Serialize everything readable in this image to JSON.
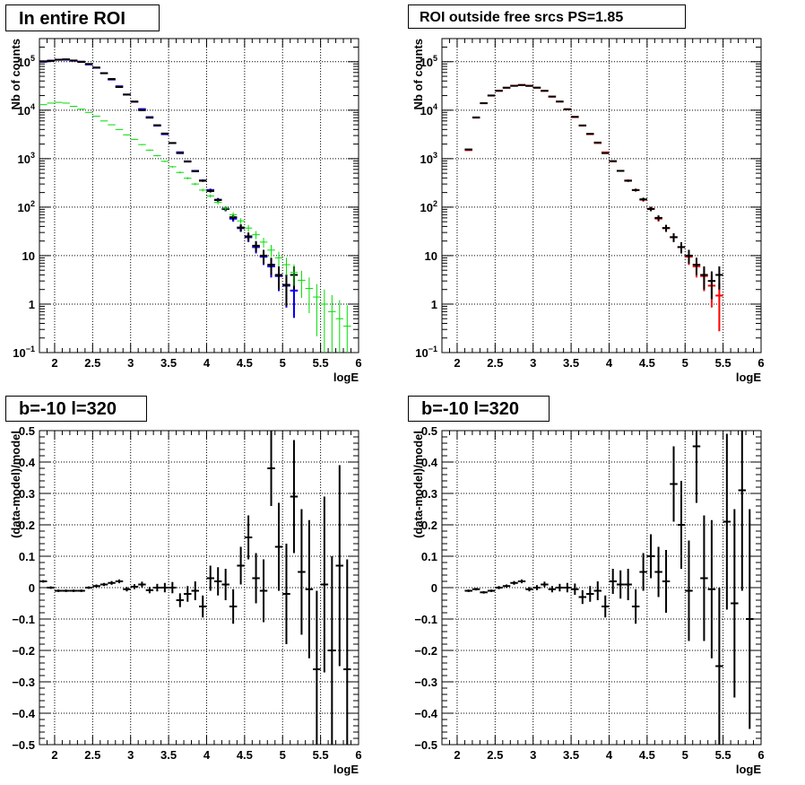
{
  "panels": [
    {
      "id": "top-left",
      "title": "In entire ROI",
      "xlabel": "logE",
      "ylabel": "Nb of counts",
      "xlim": [
        1.8,
        6.0
      ],
      "xticks": [
        {
          "v": 2,
          "t": "2"
        },
        {
          "v": 2.5,
          "t": "2.5"
        },
        {
          "v": 3,
          "t": "3"
        },
        {
          "v": 3.5,
          "t": "3.5"
        },
        {
          "v": 4,
          "t": "4"
        },
        {
          "v": 4.5,
          "t": "4.5"
        },
        {
          "v": 5,
          "t": "5"
        },
        {
          "v": 5.5,
          "t": "5.5"
        },
        {
          "v": 6,
          "t": "6"
        }
      ],
      "yscale": "log",
      "ylim": [
        0.1,
        300000
      ],
      "yticks": [
        {
          "v": 0.1,
          "t": "10",
          "sup": "−1"
        },
        {
          "v": 1,
          "t": "1",
          "sup": ""
        },
        {
          "v": 10,
          "t": "10",
          "sup": ""
        },
        {
          "v": 100,
          "t": "10",
          "sup": "2"
        },
        {
          "v": 1000,
          "t": "10",
          "sup": "3"
        },
        {
          "v": 10000,
          "t": "10",
          "sup": "4"
        },
        {
          "v": 100000,
          "t": "10",
          "sup": "5"
        }
      ],
      "grid": true
    },
    {
      "id": "top-right",
      "title": "ROI outside free srcs PS=1.85",
      "xlabel": "logE",
      "ylabel": "Nb of counts",
      "xlim": [
        1.8,
        6.0
      ],
      "xticks": [
        {
          "v": 2,
          "t": "2"
        },
        {
          "v": 2.5,
          "t": "2.5"
        },
        {
          "v": 3,
          "t": "3"
        },
        {
          "v": 3.5,
          "t": "3.5"
        },
        {
          "v": 4,
          "t": "4"
        },
        {
          "v": 4.5,
          "t": "4.5"
        },
        {
          "v": 5,
          "t": "5"
        },
        {
          "v": 5.5,
          "t": "5.5"
        },
        {
          "v": 6,
          "t": "6"
        }
      ],
      "yscale": "log",
      "ylim": [
        0.1,
        300000
      ],
      "yticks": [
        {
          "v": 0.1,
          "t": "10",
          "sup": "−1"
        },
        {
          "v": 1,
          "t": "1",
          "sup": ""
        },
        {
          "v": 10,
          "t": "10",
          "sup": ""
        },
        {
          "v": 100,
          "t": "10",
          "sup": "2"
        },
        {
          "v": 1000,
          "t": "10",
          "sup": "3"
        },
        {
          "v": 10000,
          "t": "10",
          "sup": "4"
        },
        {
          "v": 100000,
          "t": "10",
          "sup": "5"
        }
      ],
      "grid": true
    },
    {
      "id": "bottom-left",
      "title": "b=-10 l=320",
      "xlabel": "logE",
      "ylabel": "(data-model)/model",
      "xlim": [
        1.8,
        6.0
      ],
      "xticks": [
        {
          "v": 2,
          "t": "2"
        },
        {
          "v": 2.5,
          "t": "2.5"
        },
        {
          "v": 3,
          "t": "3"
        },
        {
          "v": 3.5,
          "t": "3.5"
        },
        {
          "v": 4,
          "t": "4"
        },
        {
          "v": 4.5,
          "t": "4.5"
        },
        {
          "v": 5,
          "t": "5"
        },
        {
          "v": 5.5,
          "t": "5.5"
        },
        {
          "v": 6,
          "t": "6"
        }
      ],
      "yscale": "linear",
      "ylim": [
        -0.5,
        0.5
      ],
      "yticks": [
        {
          "v": -0.5,
          "t": "−0.5"
        },
        {
          "v": -0.4,
          "t": "−0.4"
        },
        {
          "v": -0.3,
          "t": "−0.3"
        },
        {
          "v": -0.2,
          "t": "−0.2"
        },
        {
          "v": -0.1,
          "t": "−0.1"
        },
        {
          "v": 0,
          "t": "0"
        },
        {
          "v": 0.1,
          "t": "0.1"
        },
        {
          "v": 0.2,
          "t": "0.2"
        },
        {
          "v": 0.3,
          "t": "0.3"
        },
        {
          "v": 0.4,
          "t": "0.4"
        },
        {
          "v": 0.5,
          "t": "0.5"
        }
      ],
      "grid": true
    },
    {
      "id": "bottom-right",
      "title": "b=-10 l=320",
      "xlabel": "logE",
      "ylabel": "(data-model)/model",
      "xlim": [
        1.8,
        6.0
      ],
      "xticks": [
        {
          "v": 2,
          "t": "2"
        },
        {
          "v": 2.5,
          "t": "2.5"
        },
        {
          "v": 3,
          "t": "3"
        },
        {
          "v": 3.5,
          "t": "3.5"
        },
        {
          "v": 4,
          "t": "4"
        },
        {
          "v": 4.5,
          "t": "4.5"
        },
        {
          "v": 5,
          "t": "5"
        },
        {
          "v": 5.5,
          "t": "5.5"
        },
        {
          "v": 6,
          "t": "6"
        }
      ],
      "yscale": "linear",
      "ylim": [
        -0.5,
        0.5
      ],
      "yticks": [
        {
          "v": -0.5,
          "t": "−0.5"
        },
        {
          "v": -0.4,
          "t": "−0.4"
        },
        {
          "v": -0.3,
          "t": "−0.3"
        },
        {
          "v": -0.2,
          "t": "−0.2"
        },
        {
          "v": -0.1,
          "t": "−0.1"
        },
        {
          "v": 0,
          "t": "0"
        },
        {
          "v": 0.1,
          "t": "0.1"
        },
        {
          "v": 0.2,
          "t": "0.2"
        },
        {
          "v": 0.3,
          "t": "0.3"
        },
        {
          "v": 0.4,
          "t": "0.4"
        },
        {
          "v": 0.5,
          "t": "0.5"
        }
      ],
      "grid": true
    }
  ],
  "chart_data": [
    {
      "type": "scatter",
      "panel": "top-left",
      "title": "In entire ROI",
      "xlabel": "logE",
      "ylabel": "Nb of counts",
      "xlim": [
        1.8,
        6.0
      ],
      "ylim": [
        0.1,
        300000
      ],
      "yscale": "log",
      "grid": true,
      "bin_width": 0.1,
      "series": [
        {
          "color": "#ff0000",
          "style": "errorbar",
          "x_start": 1.85,
          "y": [
            100000,
            105000,
            110000,
            110000,
            105000,
            100000,
            88000,
            75000,
            58000,
            43000,
            31000,
            21000,
            15000,
            10500,
            7200,
            4800,
            3200,
            2100,
            1350,
            880,
            560,
            355,
            225,
            142,
            92,
            58,
            37,
            24,
            15,
            9.5,
            6,
            3.8,
            2.4,
            1.9
          ]
        },
        {
          "color": "#0000ff",
          "style": "errorbar",
          "x_start": 1.85,
          "y": [
            100000,
            105000,
            110000,
            110000,
            105000,
            100000,
            88000,
            75000,
            58000,
            43000,
            31000,
            21000,
            15000,
            10500,
            7200,
            4800,
            3200,
            2100,
            1350,
            880,
            560,
            355,
            225,
            142,
            92,
            58,
            37,
            24,
            15,
            9.5,
            6,
            3.8,
            2.4,
            1.9
          ]
        },
        {
          "color": "#000000",
          "style": "errorbar",
          "x_start": 1.85,
          "y": [
            102000,
            104000,
            110000,
            112000,
            106000,
            99000,
            90000,
            76000,
            58000,
            44000,
            30000,
            21000,
            15000,
            10000,
            7000,
            4900,
            3300,
            2100,
            1300,
            870,
            550,
            350,
            215,
            140,
            93,
            62,
            38,
            25,
            16,
            10,
            6.5,
            4,
            2.5,
            4
          ]
        },
        {
          "color": "#00dd00",
          "style": "errorbar",
          "x_start": 1.85,
          "y": [
            13000,
            14000,
            14500,
            14000,
            12000,
            10500,
            9000,
            7500,
            6000,
            5000,
            4000,
            3100,
            2500,
            1950,
            1500,
            1150,
            880,
            680,
            520,
            395,
            300,
            225,
            170,
            125,
            95,
            70,
            52,
            37,
            27,
            19,
            13,
            9,
            6.5,
            4.5,
            3.1,
            2.1,
            1.4,
            1.0,
            0.7,
            0.5,
            0.35
          ]
        }
      ]
    },
    {
      "type": "scatter",
      "panel": "top-right",
      "title": "ROI outside free srcs PS=1.85",
      "xlabel": "logE",
      "ylabel": "Nb of counts",
      "xlim": [
        1.8,
        6.0
      ],
      "ylim": [
        0.1,
        300000
      ],
      "yscale": "log",
      "grid": true,
      "bin_width": 0.1,
      "series": [
        {
          "color": "#ff0000",
          "style": "errorbar",
          "x_start": 2.15,
          "y": [
            1500,
            7000,
            14000,
            20000,
            25000,
            29000,
            32000,
            33000,
            32000,
            29000,
            25000,
            19000,
            15000,
            10500,
            7200,
            4800,
            3200,
            2100,
            1350,
            880,
            560,
            355,
            225,
            142,
            92,
            58,
            37,
            24,
            15,
            9.5,
            6,
            3.8,
            2.4,
            1.5
          ]
        },
        {
          "color": "#000000",
          "style": "errorbar",
          "x_start": 2.15,
          "y": [
            1550,
            7100,
            13900,
            20100,
            25200,
            29100,
            31800,
            33100,
            31700,
            29200,
            25100,
            19100,
            15100,
            10400,
            7300,
            4850,
            3250,
            2150,
            1300,
            890,
            560,
            350,
            225,
            145,
            92,
            60,
            37,
            24,
            15,
            10,
            6.5,
            4,
            3,
            4
          ]
        }
      ]
    },
    {
      "type": "scatter",
      "panel": "bottom-left",
      "title": "b=-10 l=320",
      "xlabel": "logE",
      "ylabel": "(data-model)/model",
      "xlim": [
        1.8,
        6.0
      ],
      "ylim": [
        -0.5,
        0.5
      ],
      "grid": true,
      "series": [
        {
          "color": "#000000",
          "style": "errorbar",
          "x": [
            1.85,
            1.95,
            2.05,
            2.15,
            2.25,
            2.35,
            2.45,
            2.55,
            2.65,
            2.75,
            2.85,
            2.95,
            3.05,
            3.15,
            3.25,
            3.35,
            3.45,
            3.55,
            3.65,
            3.75,
            3.85,
            3.95,
            4.05,
            4.15,
            4.25,
            4.35,
            4.45,
            4.55,
            4.65,
            4.75,
            4.85,
            4.95,
            5.05,
            5.15,
            5.25,
            5.35,
            5.45,
            5.55,
            5.65,
            5.75,
            5.85
          ],
          "y": [
            0.02,
            0,
            -0.01,
            -0.01,
            -0.01,
            -0.01,
            0,
            0.005,
            0.01,
            0.015,
            0.02,
            -0.005,
            0.003,
            0.01,
            -0.008,
            0,
            0,
            0,
            -0.04,
            -0.02,
            -0.01,
            -0.06,
            0.03,
            0.02,
            0.01,
            -0.06,
            0.07,
            0.16,
            0.03,
            -0.01,
            0.38,
            0.13,
            -0.02,
            0.29,
            0.05,
            -0.005,
            -0.26,
            0.01,
            -0.2,
            0.07,
            -0.26
          ],
          "err": [
            0.004,
            0.004,
            0.004,
            0.004,
            0.004,
            0.004,
            0.004,
            0.005,
            0.005,
            0.006,
            0.006,
            0.007,
            0.008,
            0.009,
            0.01,
            0.012,
            0.015,
            0.018,
            0.022,
            0.025,
            0.03,
            0.035,
            0.04,
            0.045,
            0.05,
            0.055,
            0.06,
            0.07,
            0.08,
            0.1,
            0.12,
            0.14,
            0.16,
            0.18,
            0.2,
            0.22,
            0.25,
            0.28,
            0.3,
            0.32,
            0.35
          ]
        }
      ]
    },
    {
      "type": "scatter",
      "panel": "bottom-right",
      "title": "b=-10 l=320",
      "xlabel": "logE",
      "ylabel": "(data-model)/model",
      "xlim": [
        1.8,
        6.0
      ],
      "ylim": [
        -0.5,
        0.5
      ],
      "grid": true,
      "series": [
        {
          "color": "#000000",
          "style": "errorbar",
          "x": [
            2.15,
            2.25,
            2.35,
            2.45,
            2.55,
            2.65,
            2.75,
            2.85,
            2.95,
            3.05,
            3.15,
            3.25,
            3.35,
            3.45,
            3.55,
            3.65,
            3.75,
            3.85,
            3.95,
            4.05,
            4.15,
            4.25,
            4.35,
            4.45,
            4.55,
            4.65,
            4.75,
            4.85,
            4.95,
            5.05,
            5.15,
            5.25,
            5.35,
            5.45,
            5.55,
            5.65,
            5.75,
            5.85
          ],
          "y": [
            -0.01,
            -0.005,
            -0.015,
            -0.01,
            0,
            0.005,
            0.015,
            0.02,
            -0.005,
            0,
            0.01,
            -0.005,
            0,
            0,
            -0.005,
            -0.03,
            -0.02,
            -0.01,
            -0.06,
            0.02,
            0.01,
            0.01,
            -0.06,
            0.05,
            0.1,
            0.05,
            0.02,
            0.33,
            0.2,
            -0.01,
            0.45,
            0.03,
            -0.005,
            -0.25,
            0.21,
            -0.05,
            0.31,
            -0.1
          ],
          "err": [
            0.004,
            0.004,
            0.004,
            0.004,
            0.005,
            0.005,
            0.006,
            0.006,
            0.007,
            0.008,
            0.009,
            0.01,
            0.012,
            0.015,
            0.018,
            0.022,
            0.025,
            0.03,
            0.035,
            0.04,
            0.045,
            0.05,
            0.055,
            0.06,
            0.07,
            0.08,
            0.1,
            0.12,
            0.14,
            0.16,
            0.18,
            0.2,
            0.22,
            0.25,
            0.28,
            0.3,
            0.32,
            0.35
          ]
        }
      ]
    }
  ]
}
